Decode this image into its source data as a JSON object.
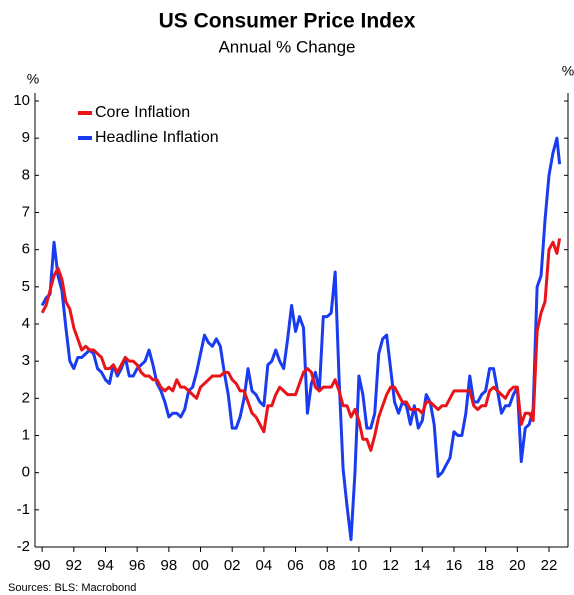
{
  "chart_data": {
    "type": "line",
    "title": "US Consumer Price Index",
    "subtitle": "Annual % Change",
    "y_unit": "%",
    "source": "Sources: BLS: Macrobond",
    "legend": "upper left",
    "grid": false,
    "x": [
      1990,
      1990.25,
      1990.5,
      1990.75,
      1991,
      1991.25,
      1991.5,
      1991.75,
      1992,
      1992.25,
      1992.5,
      1992.75,
      1993,
      1993.25,
      1993.5,
      1993.75,
      1994,
      1994.25,
      1994.5,
      1994.75,
      1995,
      1995.25,
      1995.5,
      1995.75,
      1996,
      1996.25,
      1996.5,
      1996.75,
      1997,
      1997.25,
      1997.5,
      1997.75,
      1998,
      1998.25,
      1998.5,
      1998.75,
      1999,
      1999.25,
      1999.5,
      1999.75,
      2000,
      2000.25,
      2000.5,
      2000.75,
      2001,
      2001.25,
      2001.5,
      2001.75,
      2002,
      2002.25,
      2002.5,
      2002.75,
      2003,
      2003.25,
      2003.5,
      2003.75,
      2004,
      2004.25,
      2004.5,
      2004.75,
      2005,
      2005.25,
      2005.5,
      2005.75,
      2006,
      2006.25,
      2006.5,
      2006.75,
      2007,
      2007.25,
      2007.5,
      2007.75,
      2008,
      2008.25,
      2008.5,
      2008.75,
      2009,
      2009.25,
      2009.5,
      2009.75,
      2010,
      2010.25,
      2010.5,
      2010.75,
      2011,
      2011.25,
      2011.5,
      2011.75,
      2012,
      2012.25,
      2012.5,
      2012.75,
      2013,
      2013.25,
      2013.5,
      2013.75,
      2014,
      2014.25,
      2014.5,
      2014.75,
      2015,
      2015.25,
      2015.5,
      2015.75,
      2016,
      2016.25,
      2016.5,
      2016.75,
      2017,
      2017.25,
      2017.5,
      2017.75,
      2018,
      2018.25,
      2018.5,
      2018.75,
      2019,
      2019.25,
      2019.5,
      2019.75,
      2020,
      2020.25,
      2020.5,
      2020.75,
      2021,
      2021.25,
      2021.5,
      2021.75,
      2022,
      2022.25,
      2022.5,
      2022.67
    ],
    "series": [
      {
        "name": "Core Inflation",
        "color": "#e8141a",
        "values": [
          4.3,
          4.5,
          4.9,
          5.3,
          5.5,
          5.2,
          4.6,
          4.4,
          3.9,
          3.6,
          3.3,
          3.4,
          3.3,
          3.3,
          3.2,
          3.1,
          2.8,
          2.8,
          2.9,
          2.7,
          2.9,
          3.1,
          3.0,
          3.0,
          2.9,
          2.7,
          2.6,
          2.6,
          2.5,
          2.5,
          2.3,
          2.2,
          2.3,
          2.2,
          2.5,
          2.3,
          2.3,
          2.2,
          2.1,
          2.0,
          2.3,
          2.4,
          2.5,
          2.6,
          2.6,
          2.6,
          2.7,
          2.7,
          2.5,
          2.4,
          2.2,
          2.2,
          1.9,
          1.6,
          1.5,
          1.3,
          1.1,
          1.8,
          1.8,
          2.1,
          2.3,
          2.2,
          2.1,
          2.1,
          2.1,
          2.4,
          2.7,
          2.8,
          2.7,
          2.3,
          2.2,
          2.3,
          2.3,
          2.3,
          2.5,
          2.2,
          1.8,
          1.8,
          1.5,
          1.7,
          1.4,
          0.9,
          0.9,
          0.6,
          1.0,
          1.5,
          1.8,
          2.1,
          2.3,
          2.3,
          2.1,
          1.9,
          1.9,
          1.7,
          1.7,
          1.7,
          1.6,
          1.9,
          1.9,
          1.8,
          1.7,
          1.8,
          1.8,
          2.0,
          2.2,
          2.2,
          2.2,
          2.2,
          2.2,
          1.8,
          1.7,
          1.8,
          1.8,
          2.2,
          2.3,
          2.2,
          2.1,
          2.0,
          2.2,
          2.3,
          2.3,
          1.3,
          1.6,
          1.6,
          1.4,
          3.8,
          4.3,
          4.6,
          6.0,
          6.2,
          5.9,
          6.3
        ]
      },
      {
        "name": "Headline Inflation",
        "color": "#1a3cf0",
        "values": [
          4.5,
          4.7,
          4.8,
          6.2,
          5.3,
          4.9,
          3.9,
          3.0,
          2.8,
          3.1,
          3.1,
          3.2,
          3.3,
          3.2,
          2.8,
          2.7,
          2.5,
          2.4,
          2.9,
          2.6,
          2.8,
          3.1,
          2.6,
          2.6,
          2.8,
          2.9,
          3.0,
          3.3,
          2.9,
          2.4,
          2.2,
          1.9,
          1.5,
          1.6,
          1.6,
          1.5,
          1.7,
          2.2,
          2.3,
          2.7,
          3.2,
          3.7,
          3.5,
          3.4,
          3.6,
          3.4,
          2.7,
          2.1,
          1.2,
          1.2,
          1.5,
          2.0,
          2.8,
          2.2,
          2.1,
          1.9,
          1.8,
          2.9,
          3.0,
          3.3,
          3.0,
          2.8,
          3.6,
          4.5,
          3.8,
          4.2,
          3.9,
          1.6,
          2.4,
          2.7,
          2.2,
          4.2,
          4.2,
          4.3,
          5.4,
          2.5,
          0.1,
          -0.9,
          -1.8,
          0.0,
          2.6,
          2.1,
          1.2,
          1.2,
          1.6,
          3.2,
          3.6,
          3.7,
          2.8,
          1.9,
          1.6,
          1.9,
          1.8,
          1.3,
          1.8,
          1.2,
          1.4,
          2.1,
          1.9,
          1.3,
          -0.1,
          0.0,
          0.2,
          0.4,
          1.1,
          1.0,
          1.0,
          1.6,
          2.6,
          1.9,
          1.9,
          2.1,
          2.2,
          2.8,
          2.8,
          2.2,
          1.6,
          1.8,
          1.8,
          2.1,
          2.3,
          0.3,
          1.2,
          1.3,
          1.7,
          5.0,
          5.3,
          6.8,
          8.0,
          8.6,
          9.0,
          8.3
        ]
      }
    ],
    "xlim": [
      1989.55,
      2023.2
    ],
    "xticks": [
      {
        "value": 1990,
        "label": "90"
      },
      {
        "value": 1992,
        "label": "92"
      },
      {
        "value": 1994,
        "label": "94"
      },
      {
        "value": 1996,
        "label": "96"
      },
      {
        "value": 1998,
        "label": "98"
      },
      {
        "value": 2000,
        "label": "00"
      },
      {
        "value": 2002,
        "label": "02"
      },
      {
        "value": 2004,
        "label": "04"
      },
      {
        "value": 2006,
        "label": "06"
      },
      {
        "value": 2008,
        "label": "08"
      },
      {
        "value": 2010,
        "label": "10"
      },
      {
        "value": 2012,
        "label": "12"
      },
      {
        "value": 2014,
        "label": "14"
      },
      {
        "value": 2016,
        "label": "16"
      },
      {
        "value": 2018,
        "label": "18"
      },
      {
        "value": 2020,
        "label": "20"
      },
      {
        "value": 2022,
        "label": "22"
      }
    ],
    "ylim": [
      -2,
      10
    ],
    "yticks": [
      -2,
      -1,
      0,
      1,
      2,
      3,
      4,
      5,
      6,
      7,
      8,
      9,
      10
    ]
  }
}
